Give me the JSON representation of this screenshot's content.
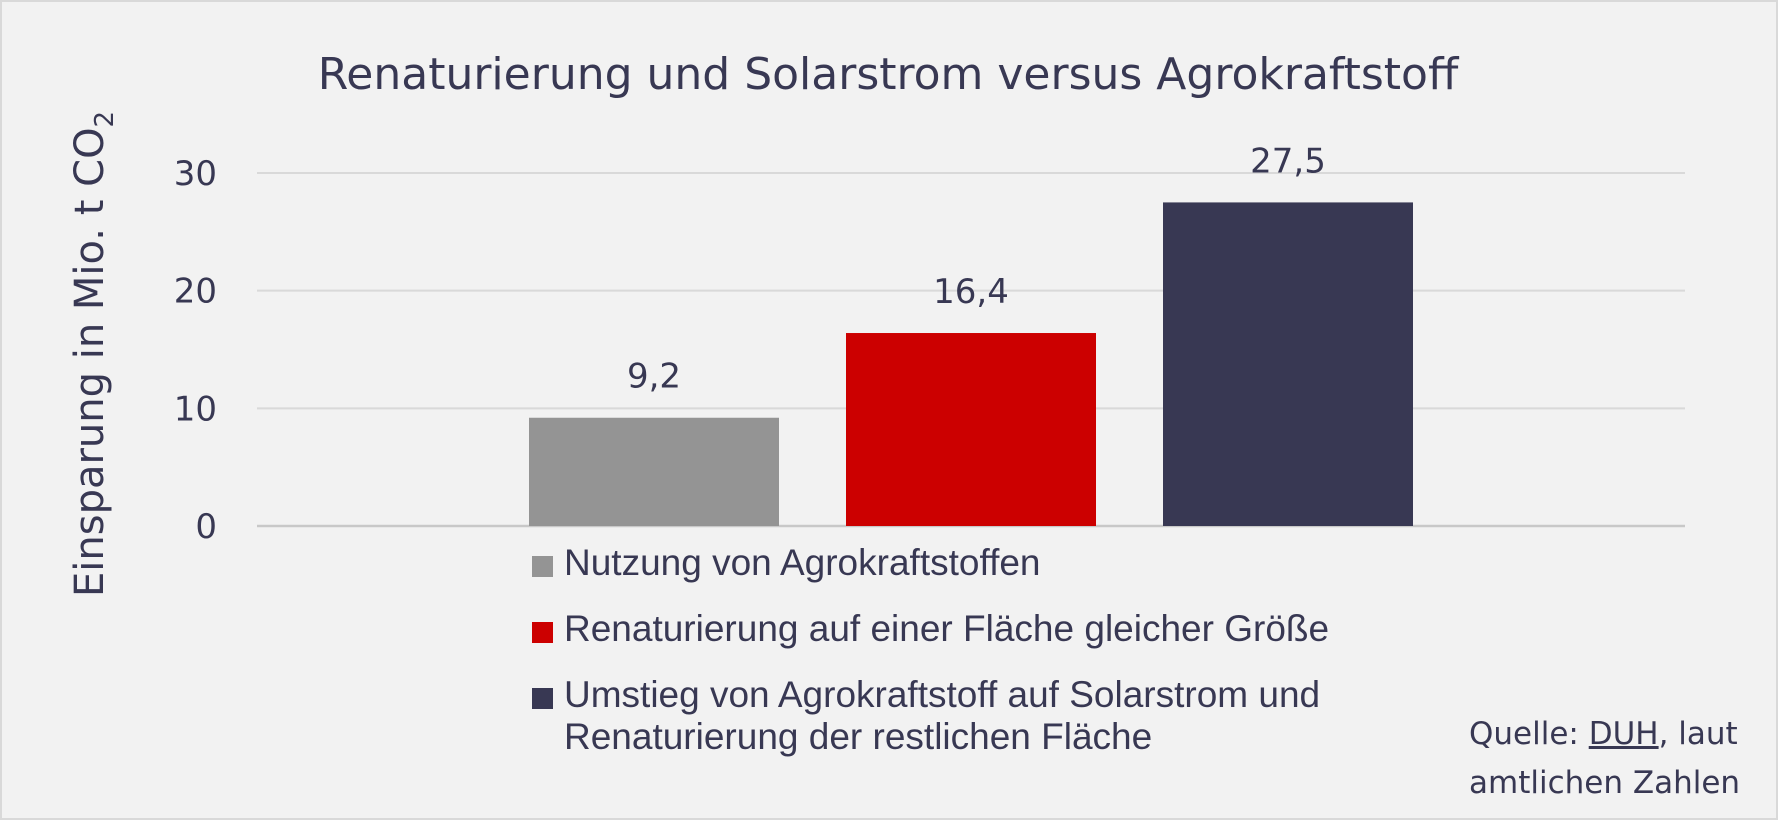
{
  "chart_data": {
    "type": "bar",
    "title": "Renaturierung und Solarstrom versus Agrokraftstoff",
    "ylabel": "Einsparung in Mio. t CO",
    "ylabel_subscript": "2",
    "xlabel": "",
    "ylim": [
      0,
      30
    ],
    "yticks": [
      "0",
      "10",
      "20",
      "30"
    ],
    "grid": true,
    "legend_position": "bottom",
    "categories": [
      "Nutzung von Agrokraftstoffen",
      "Renaturierung auf einer Fläche gleicher Größe",
      "Umstieg von Agrokraftstoff auf Solarstrom und Renaturierung der restlichen Fläche"
    ],
    "values": [
      9.2,
      16.4,
      27.5
    ],
    "data_labels": [
      "9,2",
      "16,4",
      "27,5"
    ],
    "colors": [
      "#949494",
      "#cc0000",
      "#383853"
    ]
  },
  "legend": {
    "items": [
      "Nutzung von Agrokraftstoffen",
      "Renaturierung auf einer Fläche gleicher Größe",
      "Umstieg von Agrokraftstoff auf Solarstrom und Renaturierung der restlichen Fläche"
    ]
  },
  "source": {
    "prefix": "Quelle: ",
    "link": "DUH",
    "suffix": ", laut amtlichen Zahlen"
  }
}
